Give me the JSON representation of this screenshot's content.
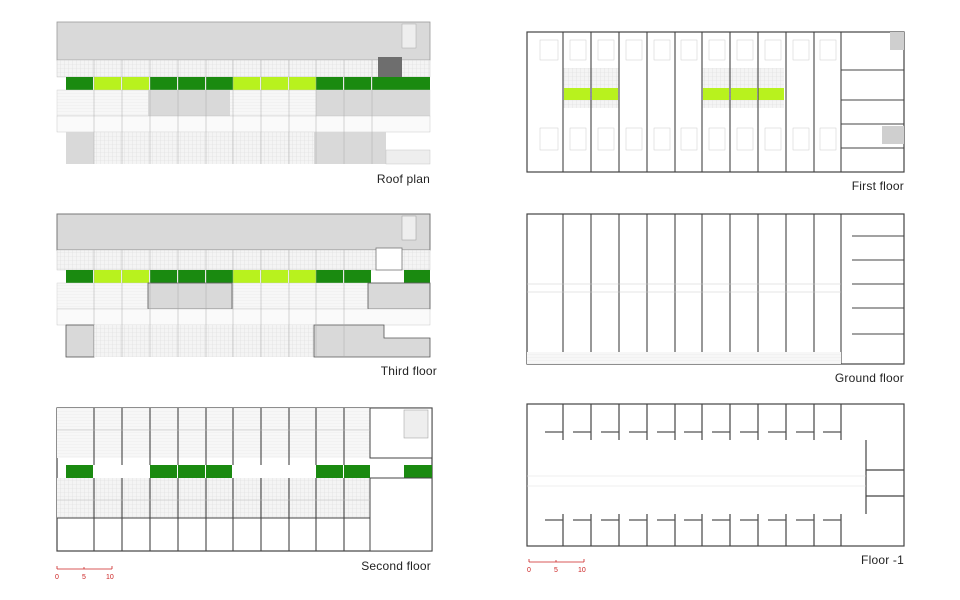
{
  "colors": {
    "green": "#1a8a10",
    "lime": "#b8f21e",
    "mass": "#d8d8d8",
    "dark": "#777777",
    "wall": "#444444",
    "scale": "#cc2222"
  },
  "plans": [
    {
      "id": "roof-plan",
      "label": "Roof plan"
    },
    {
      "id": "third-floor",
      "label": "Third floor"
    },
    {
      "id": "second-floor",
      "label": "Second floor"
    },
    {
      "id": "first-floor",
      "label": "First floor"
    },
    {
      "id": "ground-floor",
      "label": "Ground floor"
    },
    {
      "id": "floor-minus-1",
      "label": "Floor -1"
    }
  ],
  "scale_bar": {
    "ticks": [
      "0",
      "5",
      "10"
    ]
  }
}
